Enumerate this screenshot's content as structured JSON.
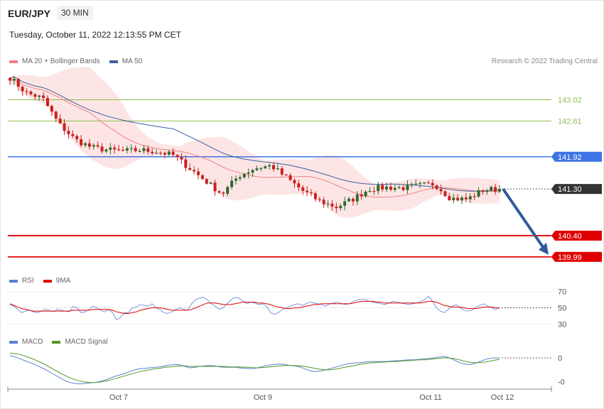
{
  "header": {
    "symbol": "EUR/JPY",
    "timeframe": "30 MIN",
    "timestamp": "Tuesday, October 11, 2022 12:13:55 PM CET"
  },
  "credit": "Research © 2022 Trading Central",
  "colors": {
    "ma20": "#f08080",
    "ma50": "#3a5f9e",
    "bands": "#fde0e0",
    "green_level": "#8fbf4d",
    "blue_level": "#3e74e6",
    "red_level": "#e00000",
    "current": "#333333",
    "rsi": "#5b7fd6",
    "rsi_ma": "#e00000",
    "macd": "#5b7fd6",
    "macd_signal": "#4e9a22",
    "up_candle": "#2e6a2e",
    "down_candle": "#cc1f1f",
    "arrow": "#2f5b9a"
  },
  "legends": {
    "price": [
      {
        "name": "MA 20 + Bollinger Bands",
        "color": "#f08080"
      },
      {
        "name": "MA 50",
        "color": "#3a5f9e"
      }
    ],
    "rsi": [
      {
        "name": "RSI",
        "color": "#5b7fd6"
      },
      {
        "name": "9MA",
        "color": "#e00000"
      }
    ],
    "macd": [
      {
        "name": "MACD",
        "color": "#5b7fd6"
      },
      {
        "name": "MACD Signal",
        "color": "#4e9a22"
      }
    ]
  },
  "chart_data": [
    {
      "type": "candlestick",
      "panel": "price",
      "ylim": [
        139.85,
        143.3
      ],
      "x_labels": [
        "Oct 7",
        "Oct 9",
        "Oct 11",
        "Oct 12"
      ],
      "levels": [
        {
          "value": 143.02,
          "label": "143.02",
          "style": "resistance"
        },
        {
          "value": 142.61,
          "label": "142.61",
          "style": "resistance"
        },
        {
          "value": 141.92,
          "label": "141.92",
          "style": "pivot"
        },
        {
          "value": 141.3,
          "label": "141.30",
          "style": "current"
        },
        {
          "value": 140.4,
          "label": "140.40",
          "style": "support"
        },
        {
          "value": 139.99,
          "label": "139.99",
          "style": "support"
        }
      ],
      "close_profile": [
        143.45,
        143.15,
        143.05,
        142.55,
        142.25,
        142.1,
        142.05,
        142.03,
        142.05,
        142.02,
        141.95,
        141.7,
        141.45,
        141.2,
        141.55,
        141.7,
        141.75,
        141.5,
        141.25,
        141.06,
        140.95,
        141.1,
        141.3,
        141.33,
        141.32,
        141.36,
        141.4,
        141.12,
        141.1,
        141.28,
        141.3
      ],
      "forecast": {
        "from": 141.3,
        "to": 139.99
      }
    },
    {
      "type": "line",
      "panel": "rsi",
      "ylim": [
        25,
        75
      ],
      "ticks": [
        70,
        50,
        30
      ],
      "series": [
        {
          "name": "RSI",
          "values": [
            54,
            52,
            48,
            44,
            46,
            47,
            45,
            44,
            46,
            48,
            47,
            45,
            48,
            47,
            46,
            45,
            52,
            50,
            44,
            45,
            48,
            52,
            50,
            47,
            45,
            48,
            44,
            35,
            38,
            44,
            44,
            50,
            51,
            54,
            53,
            52,
            55,
            50,
            48,
            44,
            43,
            45,
            48,
            50,
            48,
            47,
            55,
            60,
            62,
            63,
            60,
            55,
            52,
            48,
            50,
            55,
            60,
            63,
            62,
            58,
            55,
            57,
            56,
            54,
            55,
            52,
            44,
            42,
            44,
            48,
            50,
            52,
            54,
            55,
            53,
            55,
            57,
            56,
            55,
            54,
            52,
            55,
            56,
            57,
            55,
            54,
            55,
            58,
            60,
            61,
            60,
            58,
            57,
            56,
            55,
            54,
            56,
            58,
            57,
            56,
            55,
            54,
            55,
            56,
            58,
            60,
            64,
            58,
            50,
            46,
            44,
            48,
            52,
            54,
            50,
            47,
            46,
            47,
            51,
            53,
            55,
            52,
            50,
            48,
            50
          ]
        },
        {
          "name": "9MA",
          "values": [
            55,
            53,
            51,
            49,
            48,
            47,
            46,
            46,
            46,
            46,
            46,
            46,
            46,
            46,
            46,
            46,
            47,
            47,
            47,
            47,
            47,
            48,
            48,
            48,
            48,
            48,
            47,
            45,
            44,
            43,
            43,
            44,
            45,
            47,
            48,
            49,
            50,
            50,
            50,
            49,
            48,
            47,
            47,
            47,
            47,
            47,
            48,
            50,
            52,
            54,
            56,
            56,
            56,
            55,
            54,
            54,
            54,
            55,
            56,
            57,
            57,
            57,
            57,
            56,
            56,
            55,
            54,
            52,
            51,
            50,
            49,
            49,
            50,
            50,
            51,
            52,
            53,
            54,
            54,
            55,
            55,
            55,
            55,
            55,
            55,
            55,
            55,
            56,
            57,
            58,
            58,
            58,
            58,
            57,
            57,
            56,
            56,
            56,
            56,
            56,
            56,
            56,
            56,
            56,
            56,
            57,
            58,
            58,
            57,
            55,
            53,
            52,
            51,
            51,
            51,
            50,
            49,
            49,
            49,
            50,
            51,
            51,
            51,
            50,
            50
          ]
        }
      ]
    },
    {
      "type": "line",
      "panel": "macd",
      "ylim": [
        -0.66,
        0.24
      ],
      "ticks": [
        0,
        -0.5
      ],
      "tick_labels": [
        "0",
        "-0"
      ],
      "series": [
        {
          "name": "MACD",
          "values": [
            0.05,
            0.02,
            -0.02,
            -0.06,
            -0.1,
            -0.14,
            -0.19,
            -0.24,
            -0.3,
            -0.36,
            -0.42,
            -0.48,
            -0.52,
            -0.54,
            -0.55,
            -0.54,
            -0.53,
            -0.52,
            -0.5,
            -0.47,
            -0.43,
            -0.39,
            -0.36,
            -0.33,
            -0.29,
            -0.25,
            -0.23,
            -0.22,
            -0.21,
            -0.2,
            -0.19,
            -0.17,
            -0.15,
            -0.14,
            -0.15,
            -0.18,
            -0.21,
            -0.2,
            -0.18,
            -0.17,
            -0.16,
            -0.17,
            -0.19,
            -0.2,
            -0.2,
            -0.2,
            -0.21,
            -0.22,
            -0.23,
            -0.22,
            -0.2,
            -0.17,
            -0.15,
            -0.14,
            -0.13,
            -0.14,
            -0.16,
            -0.17,
            -0.19,
            -0.23,
            -0.27,
            -0.29,
            -0.28,
            -0.26,
            -0.23,
            -0.2,
            -0.17,
            -0.14,
            -0.12,
            -0.11,
            -0.1,
            -0.09,
            -0.08,
            -0.08,
            -0.08,
            -0.08,
            -0.07,
            -0.06,
            -0.06,
            -0.05,
            -0.04,
            -0.04,
            -0.03,
            -0.02,
            -0.01,
            0.0,
            0.02,
            0.03,
            0.0,
            -0.05,
            -0.1,
            -0.13,
            -0.14,
            -0.12,
            -0.08,
            -0.04,
            -0.01,
            0.0,
            0.0
          ]
        },
        {
          "name": "MACD Signal",
          "values": [
            0.1,
            0.09,
            0.07,
            0.04,
            0.0,
            -0.04,
            -0.09,
            -0.14,
            -0.2,
            -0.26,
            -0.32,
            -0.37,
            -0.42,
            -0.46,
            -0.49,
            -0.51,
            -0.52,
            -0.52,
            -0.51,
            -0.49,
            -0.47,
            -0.44,
            -0.41,
            -0.38,
            -0.35,
            -0.32,
            -0.29,
            -0.27,
            -0.25,
            -0.23,
            -0.22,
            -0.2,
            -0.19,
            -0.18,
            -0.17,
            -0.17,
            -0.18,
            -0.18,
            -0.18,
            -0.18,
            -0.18,
            -0.18,
            -0.18,
            -0.18,
            -0.19,
            -0.19,
            -0.19,
            -0.2,
            -0.2,
            -0.21,
            -0.21,
            -0.2,
            -0.19,
            -0.18,
            -0.17,
            -0.16,
            -0.16,
            -0.16,
            -0.17,
            -0.18,
            -0.2,
            -0.22,
            -0.24,
            -0.25,
            -0.25,
            -0.24,
            -0.22,
            -0.2,
            -0.18,
            -0.16,
            -0.14,
            -0.12,
            -0.11,
            -0.1,
            -0.09,
            -0.09,
            -0.08,
            -0.08,
            -0.07,
            -0.06,
            -0.06,
            -0.05,
            -0.04,
            -0.04,
            -0.03,
            -0.02,
            -0.01,
            0.0,
            0.0,
            -0.02,
            -0.04,
            -0.07,
            -0.09,
            -0.1,
            -0.1,
            -0.09,
            -0.07,
            -0.05,
            -0.03
          ]
        }
      ]
    }
  ]
}
